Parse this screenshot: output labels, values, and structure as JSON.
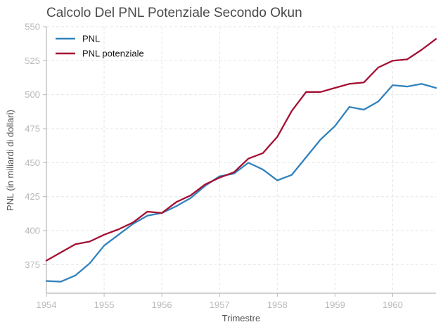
{
  "chart_data": {
    "type": "line",
    "title": "Calcolo Del PNL Potenziale Secondo Okun",
    "xlabel": "Trimestre",
    "ylabel": "PNL (in miliardi di dollari)",
    "xlim": [
      1954.0,
      1960.75
    ],
    "ylim": [
      354,
      550
    ],
    "x_ticks": [
      1954,
      1955,
      1956,
      1957,
      1958,
      1959,
      1960
    ],
    "y_ticks": [
      375,
      400,
      425,
      450,
      475,
      500,
      525,
      550
    ],
    "grid": true,
    "legend_position": "top-left",
    "x": [
      1954.0,
      1954.25,
      1954.5,
      1954.75,
      1955.0,
      1955.25,
      1955.5,
      1955.75,
      1956.0,
      1956.25,
      1956.5,
      1956.75,
      1957.0,
      1957.25,
      1957.5,
      1957.75,
      1958.0,
      1958.25,
      1958.5,
      1958.75,
      1959.0,
      1959.25,
      1959.5,
      1959.75,
      1960.0,
      1960.25,
      1960.5,
      1960.75
    ],
    "series": [
      {
        "name": "PNL",
        "color": "#3182bd",
        "values": [
          363,
          362.5,
          367,
          376,
          389,
          397,
          405,
          411,
          413,
          418,
          424,
          433,
          440,
          442,
          450,
          445,
          437,
          441,
          454,
          467,
          477,
          491,
          489,
          495,
          507,
          506,
          508,
          505
        ]
      },
      {
        "name": "PNL potenziale",
        "color": "#a50f33",
        "values": [
          378,
          384,
          390,
          392,
          397,
          401,
          406,
          414,
          413,
          421,
          426,
          434,
          439,
          443,
          453,
          457,
          469,
          488,
          502,
          502,
          505,
          508,
          509,
          520,
          525,
          526,
          533,
          541
        ]
      }
    ]
  }
}
